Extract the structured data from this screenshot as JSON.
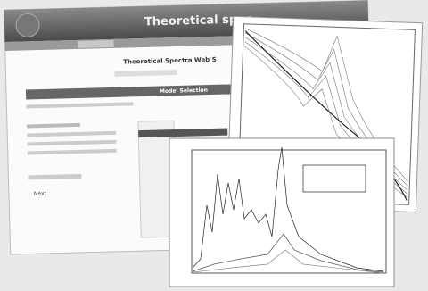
{
  "header": {
    "title": "Theoretical spec"
  },
  "page": {
    "heading": "Theoretical Spectra Web S",
    "section": "Model Selection",
    "button": "Next"
  }
}
